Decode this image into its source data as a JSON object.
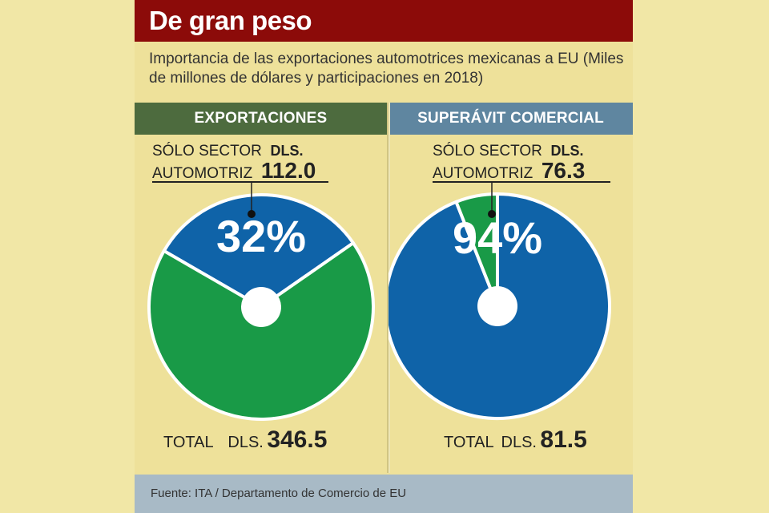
{
  "title": "De gran peso",
  "subtitle": "Importancia de las exportaciones automotrices mexicanas a EU (Miles de millones de dólares y participaciones en 2018)",
  "source": "Fuente: ITA / Departamento de Comercio de EU",
  "colors": {
    "automotive": "#0f63a8",
    "rest": "#199a47",
    "title_bg": "#8c0b09"
  },
  "chart_data": [
    {
      "type": "pie",
      "title": "EXPORTACIONES",
      "slices": [
        {
          "name": "",
          "value": 32,
          "color": "#0f63a8"
        },
        {
          "name": "",
          "value": 68,
          "color": "#199a47"
        }
      ],
      "percent_label": "32%",
      "sector_label_line1": "SÓLO SECTOR",
      "sector_label_line2": "AUTOMOTRIZ",
      "sector_currency": "DLS.",
      "sector_value": "112.0",
      "total_label": "TOTAL",
      "total_currency": "DLS.",
      "total_value": "346.5"
    },
    {
      "type": "pie",
      "title": "SUPERÁVIT COMERCIAL",
      "slices": [
        {
          "name": "",
          "value": 94,
          "color": "#0f63a8"
        },
        {
          "name": "",
          "value": 6,
          "color": "#199a47"
        }
      ],
      "percent_label": "94%",
      "sector_label_line1": "SÓLO  SECTOR",
      "sector_label_line2": "AUTOMOTRIZ",
      "sector_currency": "DLS.",
      "sector_value": "76.3",
      "total_label": "TOTAL",
      "total_currency": "DLS.",
      "total_value": "81.5"
    }
  ]
}
